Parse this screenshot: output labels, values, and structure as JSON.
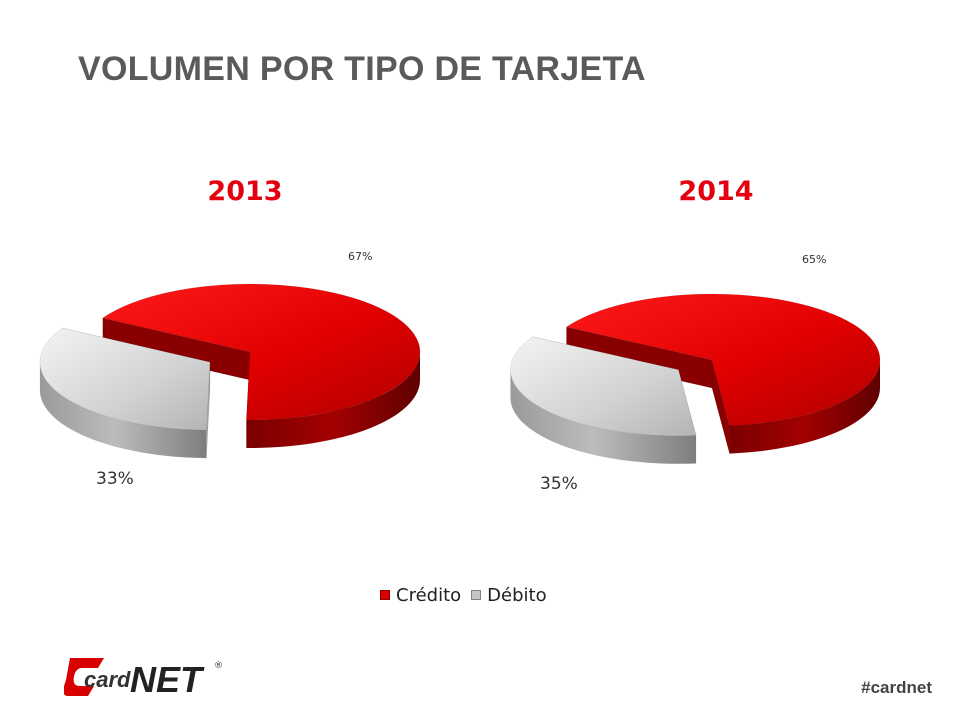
{
  "slide": {
    "title": "VOLUMEN POR TIPO DE TARJETA",
    "hashtag": "#cardnet",
    "title_color": "#5a5a5a",
    "accent_color": "#e3000f"
  },
  "logo": {
    "text_part1": "card",
    "text_part2": "NET",
    "registered": "®"
  },
  "chart_data": [
    {
      "type": "pie",
      "title": "2013",
      "categories": [
        "Crédito",
        "Débito"
      ],
      "values": [
        67,
        33
      ],
      "labels": [
        "67%",
        "33%"
      ],
      "colors": [
        "#d80000",
        "#c4c4c4"
      ],
      "style": "3d-exploded",
      "legend": "bottom"
    },
    {
      "type": "pie",
      "title": "2014",
      "categories": [
        "Crédito",
        "Débito"
      ],
      "values": [
        65,
        35
      ],
      "labels": [
        "65%",
        "35%"
      ],
      "colors": [
        "#d80000",
        "#c4c4c4"
      ],
      "style": "3d-exploded",
      "legend": "bottom"
    }
  ],
  "legend": {
    "items": [
      {
        "label": "Crédito",
        "color": "#d80000"
      },
      {
        "label": "Débito",
        "color": "#c4c4c4"
      }
    ]
  }
}
